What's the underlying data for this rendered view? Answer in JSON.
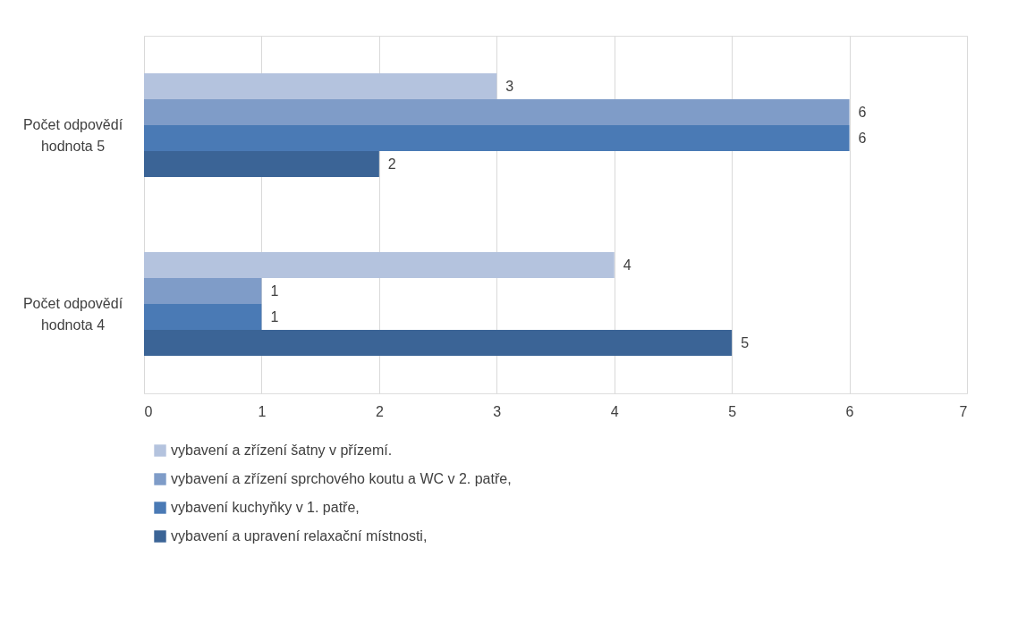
{
  "chart_data": {
    "type": "bar",
    "orientation": "horizontal",
    "categories": [
      "Počet odpovědí hodnota 5",
      "Počet odpovědí hodnota 4"
    ],
    "series": [
      {
        "name": "vybavení a zřízení šatny v přízemí.",
        "color": "#b4c3de",
        "values": [
          3,
          4
        ]
      },
      {
        "name": "vybavení a zřízení sprchového koutu a WC v 2. patře,",
        "color": "#7f9cc8",
        "values": [
          6,
          1
        ]
      },
      {
        "name": "vybavení kuchyňky v 1. patře,",
        "color": "#4a7ab5",
        "values": [
          6,
          1
        ]
      },
      {
        "name": "vybavení a upravení relaxační místnosti,",
        "color": "#3b6496",
        "values": [
          2,
          5
        ]
      }
    ],
    "xlim": [
      0,
      7
    ],
    "xticks": [
      0,
      1,
      2,
      3,
      4,
      5,
      6,
      7
    ],
    "grid": "x",
    "legend": "bottom",
    "data_labels": true
  }
}
